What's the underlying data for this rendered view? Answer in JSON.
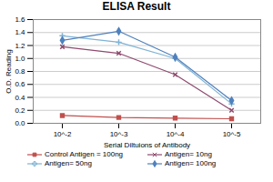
{
  "chart_data": {
    "type": "line",
    "title": "ELISA Result",
    "x_label": "Serial Diltuions of Antibody",
    "y_label": "O.D. Reading",
    "categories": [
      "10^-2",
      "10^-3",
      "10^-4",
      "10^-5"
    ],
    "series": [
      {
        "name": "Control Antigen = 100ng",
        "color": "#c0504d",
        "marker": "square",
        "values": [
          0.12,
          0.09,
          0.08,
          0.07
        ]
      },
      {
        "name": "Antigen= 10ng",
        "color": "#8e4a6e",
        "marker": "times",
        "values": [
          1.18,
          1.08,
          0.75,
          0.2
        ]
      },
      {
        "name": "Antigen= 50ng",
        "color": "#7fb3d5",
        "marker": "plus",
        "values": [
          1.35,
          1.25,
          1.0,
          0.3
        ]
      },
      {
        "name": "Antigen= 100ng",
        "color": "#4f81bd",
        "marker": "diamond",
        "values": [
          1.28,
          1.42,
          1.02,
          0.35
        ]
      }
    ],
    "ylim": [
      0,
      1.6
    ],
    "yticks": [
      0,
      0.2,
      0.4,
      0.6,
      0.8,
      1,
      1.2,
      1.4,
      1.6
    ],
    "grid": true,
    "legend": "bottom"
  }
}
